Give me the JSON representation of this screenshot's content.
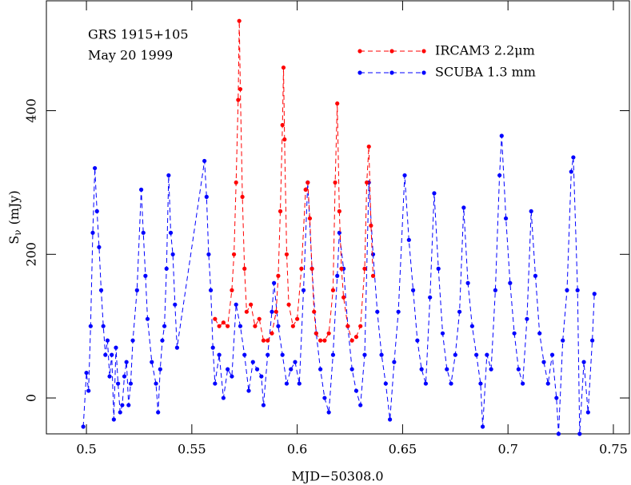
{
  "chart_data": {
    "type": "line",
    "annotations": [
      "GRS 1915+105",
      "May 20 1999"
    ],
    "xlabel": "MJD−50308.0",
    "ylabel": {
      "symbol": "S",
      "subscript": "ν",
      "unit": "(mJy)"
    },
    "xlim": [
      0.481,
      0.7576
    ],
    "ylim": [
      -50,
      553
    ],
    "xticks": [
      0.5,
      0.55,
      0.6,
      0.65,
      0.7,
      0.75
    ],
    "yticks": [
      0,
      200,
      400
    ],
    "legend": "upper right",
    "series": [
      {
        "name": "IRCAM3 2.2μm",
        "color": "#ff0000",
        "x": [
          0.561,
          0.563,
          0.565,
          0.567,
          0.569,
          0.57,
          0.571,
          0.572,
          0.5725,
          0.573,
          0.574,
          0.575,
          0.576,
          0.578,
          0.58,
          0.582,
          0.584,
          0.586,
          0.588,
          0.59,
          0.591,
          0.592,
          0.593,
          0.5935,
          0.594,
          0.595,
          0.596,
          0.598,
          0.6,
          0.602,
          0.604,
          0.605,
          0.606,
          0.607,
          0.608,
          0.609,
          0.611,
          0.613,
          0.615,
          0.617,
          0.618,
          0.619,
          0.62,
          0.621,
          0.622,
          0.624,
          0.626,
          0.628,
          0.63,
          0.632,
          0.633,
          0.634,
          0.635,
          0.636
        ],
        "values": [
          110,
          100,
          105,
          100,
          150,
          200,
          300,
          415,
          525,
          430,
          280,
          180,
          120,
          130,
          100,
          110,
          80,
          80,
          90,
          120,
          170,
          260,
          380,
          460,
          360,
          200,
          130,
          100,
          110,
          180,
          290,
          300,
          250,
          180,
          120,
          90,
          80,
          80,
          90,
          150,
          300,
          410,
          260,
          180,
          140,
          100,
          80,
          85,
          100,
          180,
          300,
          350,
          240,
          170
        ]
      },
      {
        "name": "SCUBA 1.3 mm",
        "color": "#0000ff",
        "x": [
          0.4985,
          0.5,
          0.501,
          0.502,
          0.503,
          0.504,
          0.505,
          0.506,
          0.507,
          0.508,
          0.509,
          0.51,
          0.511,
          0.512,
          0.513,
          0.514,
          0.515,
          0.516,
          0.517,
          0.518,
          0.519,
          0.52,
          0.521,
          0.522,
          0.524,
          0.526,
          0.527,
          0.528,
          0.529,
          0.531,
          0.533,
          0.534,
          0.535,
          0.536,
          0.537,
          0.538,
          0.539,
          0.54,
          0.541,
          0.542,
          0.543,
          0.556,
          0.557,
          0.558,
          0.559,
          0.56,
          0.561,
          0.563,
          0.565,
          0.567,
          0.569,
          0.571,
          0.573,
          0.575,
          0.577,
          0.579,
          0.581,
          0.583,
          0.584,
          0.586,
          0.588,
          0.589,
          0.591,
          0.593,
          0.595,
          0.597,
          0.599,
          0.601,
          0.603,
          0.605,
          0.607,
          0.609,
          0.611,
          0.613,
          0.615,
          0.617,
          0.619,
          0.62,
          0.622,
          0.624,
          0.626,
          0.628,
          0.63,
          0.632,
          0.634,
          0.636,
          0.638,
          0.64,
          0.642,
          0.644,
          0.646,
          0.648,
          0.651,
          0.653,
          0.655,
          0.657,
          0.659,
          0.661,
          0.663,
          0.665,
          0.667,
          0.669,
          0.671,
          0.673,
          0.675,
          0.677,
          0.679,
          0.681,
          0.683,
          0.685,
          0.687,
          0.688,
          0.69,
          0.692,
          0.694,
          0.696,
          0.697,
          0.699,
          0.701,
          0.703,
          0.705,
          0.707,
          0.709,
          0.711,
          0.713,
          0.715,
          0.717,
          0.719,
          0.721,
          0.723,
          0.724,
          0.726,
          0.728,
          0.73,
          0.731,
          0.733,
          0.734,
          0.736,
          0.738,
          0.74,
          0.741
        ],
        "values": [
          -40,
          35,
          10,
          100,
          230,
          320,
          260,
          210,
          150,
          100,
          60,
          80,
          30,
          60,
          -30,
          70,
          20,
          -20,
          -10,
          30,
          50,
          -10,
          20,
          80,
          150,
          290,
          230,
          170,
          110,
          50,
          20,
          -20,
          40,
          80,
          100,
          180,
          310,
          230,
          200,
          130,
          70,
          330,
          280,
          200,
          150,
          70,
          20,
          60,
          0,
          40,
          30,
          130,
          100,
          60,
          10,
          50,
          40,
          30,
          -10,
          60,
          120,
          160,
          100,
          60,
          20,
          40,
          50,
          20,
          150,
          300,
          180,
          90,
          40,
          0,
          -20,
          60,
          170,
          230,
          180,
          100,
          40,
          10,
          -10,
          60,
          300,
          200,
          120,
          60,
          20,
          -30,
          50,
          120,
          310,
          220,
          150,
          80,
          40,
          20,
          140,
          285,
          180,
          90,
          40,
          20,
          60,
          120,
          265,
          160,
          100,
          60,
          20,
          -40,
          60,
          40,
          150,
          310,
          365,
          250,
          160,
          90,
          40,
          20,
          110,
          260,
          170,
          90,
          50,
          20,
          60,
          0,
          -50,
          80,
          150,
          315,
          335,
          150,
          -50,
          50,
          -20,
          80,
          145
        ]
      }
    ]
  }
}
